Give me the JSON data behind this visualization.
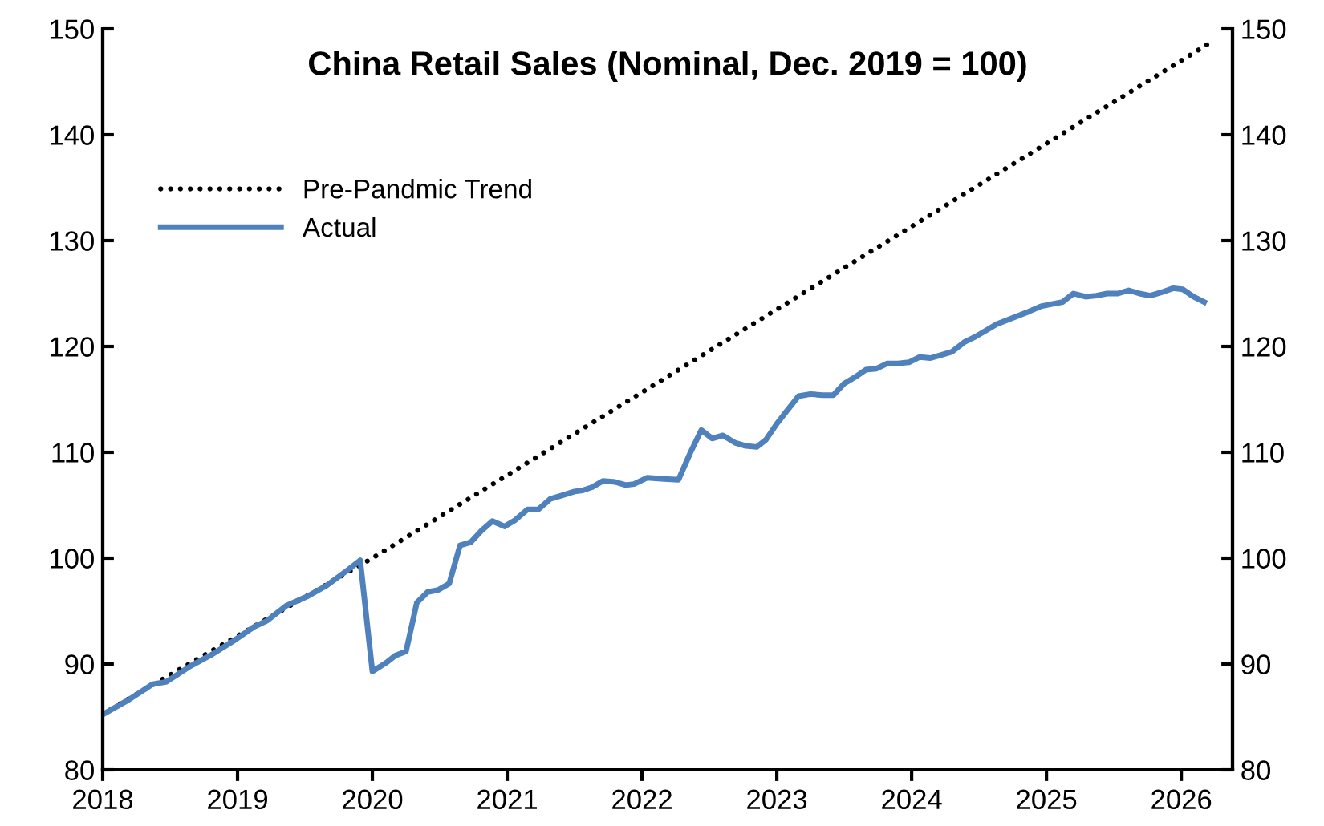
{
  "chart_data": {
    "type": "line",
    "title": "China Retail Sales (Nominal, Dec. 2019 = 100)",
    "xlim": [
      2018,
      2026.38
    ],
    "xticks": [
      2018,
      2019,
      2020,
      2021,
      2022,
      2023,
      2024,
      2025,
      2026
    ],
    "ylim": [
      80,
      150
    ],
    "yticks": [
      80,
      90,
      100,
      110,
      120,
      130,
      140,
      150
    ],
    "y2lim": [
      80,
      150
    ],
    "y2ticks": [
      80,
      90,
      100,
      110,
      120,
      130,
      140,
      150
    ],
    "grid": false,
    "legend": "top left",
    "series": [
      {
        "name": "Pre-Pandmic Trend",
        "color": "#000000",
        "line_style": "dotted",
        "x": [
          2018.0,
          2020.0,
          2026.19
        ],
        "values": [
          85.3,
          100,
          148.5
        ]
      },
      {
        "name": "Actual",
        "color": "#4f81bd",
        "line_style": "solid",
        "x": [
          2018.01,
          2018.19,
          2018.37,
          2018.47,
          2018.65,
          2018.81,
          2018.96,
          2019.12,
          2019.22,
          2019.36,
          2019.52,
          2019.66,
          2019.82,
          2019.91,
          2020.0,
          2020.1,
          2020.17,
          2020.25,
          2020.33,
          2020.41,
          2020.49,
          2020.57,
          2020.65,
          2020.73,
          2020.81,
          2020.89,
          2020.98,
          2021.06,
          2021.15,
          2021.23,
          2021.32,
          2021.4,
          2021.5,
          2021.56,
          2021.63,
          2021.71,
          2021.8,
          2021.88,
          2021.94,
          2022.04,
          2022.14,
          2022.27,
          2022.36,
          2022.44,
          2022.52,
          2022.6,
          2022.69,
          2022.77,
          2022.85,
          2022.92,
          2023.0,
          2023.08,
          2023.16,
          2023.25,
          2023.34,
          2023.42,
          2023.5,
          2023.58,
          2023.66,
          2023.74,
          2023.82,
          2023.9,
          2023.98,
          2024.06,
          2024.14,
          2024.22,
          2024.3,
          2024.39,
          2024.47,
          2024.55,
          2024.63,
          2024.71,
          2024.79,
          2024.87,
          2024.96,
          2025.04,
          2025.12,
          2025.2,
          2025.29,
          2025.37,
          2025.45,
          2025.53,
          2025.61,
          2025.69,
          2025.77,
          2025.85,
          2025.94,
          2026.01,
          2026.09,
          2026.17
        ],
        "values": [
          85.3,
          86.6,
          88.1,
          88.3,
          89.8,
          90.9,
          92.1,
          93.5,
          94.1,
          95.5,
          96.4,
          97.4,
          98.9,
          99.8,
          89.3,
          90.1,
          90.8,
          91.2,
          95.8,
          96.8,
          97.0,
          97.6,
          101.2,
          101.5,
          102.6,
          103.5,
          103.0,
          103.6,
          104.6,
          104.6,
          105.6,
          105.9,
          106.3,
          106.4,
          106.7,
          107.3,
          107.2,
          106.9,
          107.0,
          107.6,
          107.5,
          107.4,
          110.0,
          112.1,
          111.3,
          111.6,
          110.9,
          110.6,
          110.5,
          111.2,
          112.7,
          114.0,
          115.3,
          115.5,
          115.4,
          115.4,
          116.5,
          117.1,
          117.8,
          117.9,
          118.4,
          118.4,
          118.5,
          119.0,
          118.9,
          119.2,
          119.5,
          120.4,
          120.9,
          121.5,
          122.1,
          122.5,
          122.9,
          123.3,
          123.8,
          124.0,
          124.2,
          125.0,
          124.7,
          124.8,
          125.0,
          125.0,
          125.3,
          125.0,
          124.8,
          125.1,
          125.5,
          125.4,
          124.7,
          124.2
        ]
      }
    ]
  }
}
